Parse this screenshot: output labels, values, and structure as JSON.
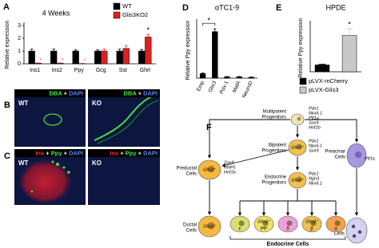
{
  "panel_labels": [
    "A",
    "B",
    "C",
    "D",
    "E",
    "F"
  ],
  "chart_data": [
    {
      "type": "bar",
      "title": "4 Weeks",
      "y_label": "Relative expression",
      "categories": [
        "Ins1",
        "Ins2",
        "Ppy",
        "Gcg",
        "Sst",
        "Ghrl"
      ],
      "series": [
        {
          "name": "WT",
          "color": "#000000",
          "values": [
            1.0,
            1.0,
            1.0,
            1.0,
            1.0,
            1.0
          ],
          "errors": [
            0.15,
            0.15,
            0.1,
            0.1,
            0.15,
            0.12
          ]
        },
        {
          "name": "Glis3KO2",
          "color": "#e02020",
          "values": [
            0.05,
            0.05,
            0.02,
            1.0,
            1.2,
            2.1
          ],
          "errors": [
            0.02,
            0.02,
            0.01,
            0.15,
            0.2,
            0.2
          ]
        }
      ],
      "ylim": [
        0,
        3
      ],
      "yticks": [
        0,
        1,
        2,
        3
      ],
      "grid": false,
      "legend": "top-right",
      "annotations": [
        {
          "text": "*",
          "at": "Ins1",
          "series": "Glis3KO2"
        },
        {
          "text": "*",
          "at": "Ins2",
          "series": "Glis3KO2"
        },
        {
          "text": "*",
          "at": "Ppy",
          "series": "Glis3KO2"
        },
        {
          "text": "*",
          "at": "Ghrl",
          "series": "Glis3KO2"
        }
      ]
    },
    {
      "type": "bar",
      "title": "αTC1-9",
      "y_label": "Relative Ppy expression",
      "categories": [
        "Emp",
        "Glis3",
        "Pdx-1",
        "MafA",
        "NeuroD"
      ],
      "values": [
        1.0,
        10.0,
        0.3,
        0.3,
        0.2
      ],
      "errors": [
        0.1,
        0.6,
        0.05,
        0.05,
        0.05
      ],
      "color": "#000000",
      "ylim": [
        0,
        12
      ],
      "grid": false,
      "annotations": [
        {
          "text": "*",
          "at": "Glis3"
        }
      ]
    },
    {
      "type": "bar",
      "title": "HPDE",
      "y_label": "Relative Ppy expression",
      "categories": [
        null
      ],
      "series": [
        {
          "name": "pLVX-mCherry",
          "color": "#000000",
          "values": [
            1.0
          ],
          "errors": [
            0.1
          ]
        },
        {
          "name": "pLVX-Glis3",
          "color": "#c8c8c8",
          "values": [
            5.3
          ],
          "errors": [
            1.0
          ]
        }
      ],
      "ylim": [
        0,
        7
      ],
      "grid": false,
      "legend": "bottom",
      "annotations": [
        {
          "text": "*",
          "series": "pLVX-Glis3"
        }
      ]
    }
  ],
  "micrographs": [
    {
      "stain": [
        {
          "text": "DBA",
          "color": "#44ee44"
        },
        {
          "text": "+",
          "color": "#ffffff"
        },
        {
          "text": "DAPI",
          "color": "#5588ff"
        }
      ],
      "left": "WT",
      "right": "KO"
    },
    {
      "stain": [
        {
          "text": "Ins",
          "color": "#ff3030"
        },
        {
          "text": "+",
          "color": "#ffffff"
        },
        {
          "text": "Ppy",
          "color": "#44ee44"
        },
        {
          "text": "+",
          "color": "#ffffff"
        },
        {
          "text": "DAPI",
          "color": "#5588ff"
        }
      ],
      "left": "WT",
      "right": "KO"
    }
  ],
  "diagram": {
    "nodes": {
      "multipotent": {
        "label": [
          "Multipotent",
          "Progenitors"
        ],
        "genes": [
          "Pdx1",
          "Nkx6.1",
          "Ptf1a",
          "Sox9",
          "Hnf1b"
        ]
      },
      "bipotent": {
        "label": [
          "Bipotent",
          "Progenitors"
        ],
        "marker": "Glis3⁺",
        "genes": [
          "Pdx1",
          "Nkx6.1",
          "Sox9"
        ]
      },
      "endocrine": {
        "label": [
          "Endocrine",
          "Progenitors"
        ],
        "marker": "Glis3⁺",
        "genes": [
          "Pdx1",
          "Ngn3",
          "Nkx6.1"
        ]
      },
      "preductal": {
        "label": [
          "Preductal",
          "Cells"
        ],
        "marker": "Glis3⁺",
        "genes": [
          "Sox9",
          "HNF6",
          "Hnf1b"
        ]
      },
      "ductal": {
        "label": [
          "Ductal",
          "Cells"
        ],
        "marker": "Glis3⁺"
      },
      "preacinar": {
        "label": [
          "Preacinar",
          "Cells"
        ],
        "marker": "Ptf1a"
      },
      "acinar": {
        "label": [
          "Acinar",
          "Cells"
        ]
      }
    },
    "endocrine_cells": [
      {
        "symbol": "ε",
        "color": "#d8e070"
      },
      {
        "symbol": "PP",
        "color": "#f2e060",
        "marker": "Glis3⁺"
      },
      {
        "symbol": "δ",
        "color": "#f0a0d8"
      },
      {
        "symbol": "β",
        "color": "#f0c050",
        "marker": "Glis3⁺"
      },
      {
        "symbol": "α",
        "color": "#f5a050"
      }
    ],
    "endocrine_label": "Endocrine Cells"
  }
}
